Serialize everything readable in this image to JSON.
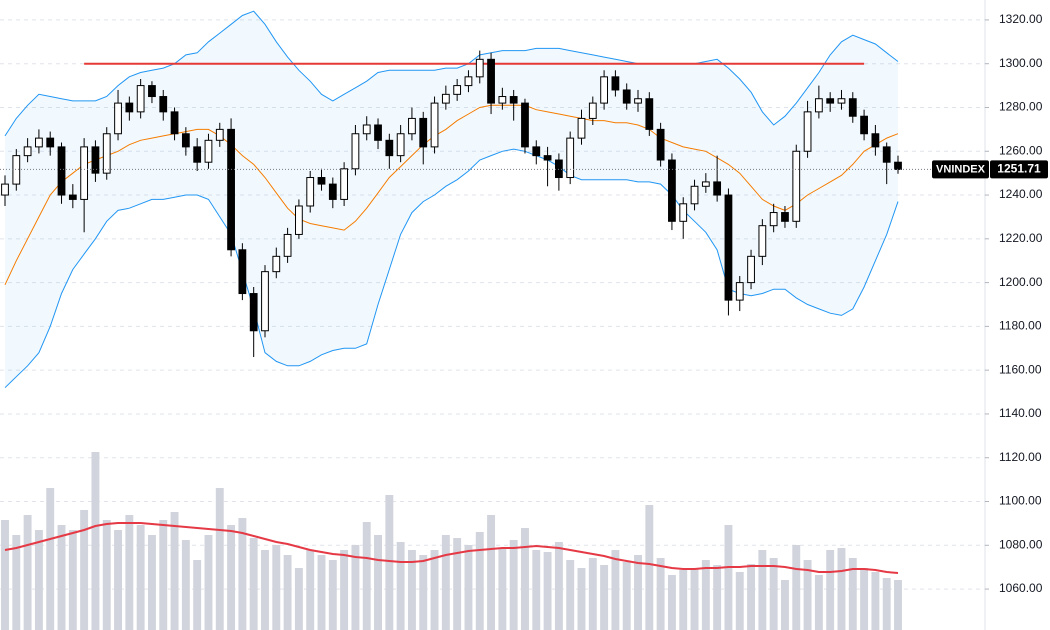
{
  "chart_data": {
    "type": "candlestick",
    "symbol": "VNINDEX",
    "last_price": 1251.71,
    "ylim": [
      1041.3,
      1329.1
    ],
    "yticks": [
      {
        "value": 1060,
        "label": "1060.00"
      },
      {
        "value": 1080,
        "label": "1080.00"
      },
      {
        "value": 1100,
        "label": "1100.00"
      },
      {
        "value": 1120,
        "label": "1120.00"
      },
      {
        "value": 1140,
        "label": "1140.00"
      },
      {
        "value": 1160,
        "label": "1160.00"
      },
      {
        "value": 1180,
        "label": "1180.00"
      },
      {
        "value": 1200,
        "label": "1200.00"
      },
      {
        "value": 1220,
        "label": "1220.00"
      },
      {
        "value": 1240,
        "label": "1240.00"
      },
      {
        "value": 1260,
        "label": "1260.00"
      },
      {
        "value": 1280,
        "label": "1280.00"
      },
      {
        "value": 1300,
        "label": "1300.00"
      },
      {
        "value": 1320,
        "label": "1320.00"
      }
    ],
    "grid": true,
    "open": [
      1240,
      1245,
      1258,
      1262,
      1266,
      1262,
      1240,
      1238,
      1262,
      1250,
      1268,
      1282,
      1278,
      1290,
      1285,
      1278,
      1268,
      1262,
      1255,
      1265,
      1270,
      1215,
      1195,
      1178,
      1205,
      1212,
      1222,
      1235,
      1248,
      1245,
      1238,
      1252,
      1268,
      1272,
      1265,
      1258,
      1268,
      1275,
      1262,
      1282,
      1286,
      1290,
      1294,
      1302,
      1282,
      1285,
      1282,
      1262,
      1258,
      1256,
      1248,
      1266,
      1275,
      1282,
      1294,
      1288,
      1282,
      1284,
      1270,
      1256,
      1228,
      1236,
      1244,
      1246,
      1240,
      1192,
      1200,
      1212,
      1226,
      1232,
      1228,
      1260,
      1278,
      1284,
      1282,
      1284,
      1276,
      1268,
      1262,
      1255
    ],
    "high": [
      1249,
      1261,
      1266,
      1270,
      1269,
      1264,
      1245,
      1266,
      1265,
      1271,
      1288,
      1285,
      1293,
      1292,
      1288,
      1280,
      1271,
      1266,
      1268,
      1273,
      1275,
      1218,
      1198,
      1208,
      1216,
      1225,
      1238,
      1251,
      1252,
      1248,
      1255,
      1272,
      1276,
      1275,
      1268,
      1272,
      1280,
      1278,
      1285,
      1290,
      1293,
      1297,
      1306,
      1305,
      1289,
      1288,
      1284,
      1265,
      1262,
      1259,
      1269,
      1279,
      1285,
      1297,
      1297,
      1291,
      1288,
      1287,
      1273,
      1259,
      1239,
      1247,
      1250,
      1258,
      1243,
      1203,
      1215,
      1229,
      1236,
      1235,
      1263,
      1283,
      1290,
      1287,
      1288,
      1287,
      1279,
      1272,
      1264,
      1258
    ],
    "low": [
      1235,
      1242,
      1255,
      1259,
      1258,
      1236,
      1234,
      1223,
      1246,
      1247,
      1265,
      1274,
      1275,
      1282,
      1274,
      1265,
      1258,
      1251,
      1252,
      1262,
      1212,
      1192,
      1166,
      1175,
      1202,
      1209,
      1220,
      1232,
      1242,
      1234,
      1235,
      1249,
      1265,
      1261,
      1252,
      1255,
      1265,
      1254,
      1259,
      1279,
      1283,
      1287,
      1291,
      1277,
      1279,
      1274,
      1259,
      1254,
      1244,
      1242,
      1245,
      1263,
      1272,
      1279,
      1285,
      1279,
      1278,
      1267,
      1253,
      1224,
      1220,
      1233,
      1241,
      1237,
      1185,
      1187,
      1197,
      1208,
      1223,
      1225,
      1225,
      1257,
      1275,
      1278,
      1279,
      1273,
      1265,
      1258,
      1245,
      1249.7
    ],
    "close": [
      1245,
      1258,
      1262,
      1266,
      1262,
      1240,
      1238,
      1262,
      1250,
      1268,
      1282,
      1278,
      1290,
      1285,
      1278,
      1268,
      1262,
      1255,
      1265,
      1270,
      1215,
      1195,
      1178,
      1205,
      1212,
      1222,
      1235,
      1248,
      1245,
      1238,
      1252,
      1268,
      1272,
      1265,
      1258,
      1268,
      1275,
      1262,
      1282,
      1286,
      1290,
      1294,
      1302,
      1282,
      1285,
      1282,
      1262,
      1258,
      1256,
      1248,
      1266,
      1275,
      1282,
      1294,
      1288,
      1282,
      1284,
      1270,
      1256,
      1228,
      1236,
      1244,
      1246,
      1240,
      1192,
      1200,
      1212,
      1226,
      1232,
      1228,
      1260,
      1278,
      1284,
      1282,
      1284,
      1276,
      1268,
      1262,
      1255,
      1251.71
    ],
    "bb_upper": [
      1267,
      1275,
      1281,
      1286,
      1285,
      1284,
      1283,
      1283,
      1283,
      1285,
      1290,
      1294,
      1296,
      1297,
      1298,
      1300,
      1304,
      1305,
      1310,
      1314,
      1318,
      1322,
      1324,
      1318,
      1310,
      1303,
      1297,
      1292,
      1286,
      1283,
      1286,
      1289,
      1292,
      1296,
      1297,
      1297,
      1297,
      1297,
      1297,
      1298,
      1298,
      1300,
      1304,
      1305,
      1306,
      1306,
      1306,
      1307,
      1307,
      1307,
      1306,
      1305,
      1304,
      1303,
      1302,
      1301,
      1300,
      1300,
      1300,
      1300,
      1300,
      1300,
      1301,
      1302,
      1298,
      1293,
      1287,
      1278,
      1272,
      1276,
      1282,
      1289,
      1296,
      1304,
      1310,
      1313,
      1311,
      1309,
      1305,
      1301
    ],
    "bb_middle": [
      1199,
      1210,
      1220,
      1230,
      1240,
      1246,
      1250,
      1254,
      1256,
      1258,
      1260,
      1263,
      1265,
      1266,
      1267,
      1268,
      1269,
      1270,
      1270,
      1267,
      1263,
      1258,
      1254,
      1248,
      1241,
      1234,
      1229,
      1227,
      1226,
      1225,
      1224,
      1228,
      1234,
      1241,
      1248,
      1253,
      1258,
      1263,
      1267,
      1270,
      1274,
      1277,
      1280,
      1281,
      1281,
      1281,
      1281,
      1279,
      1278,
      1277,
      1276,
      1275,
      1274,
      1274,
      1273,
      1273,
      1272,
      1270,
      1266,
      1264,
      1262,
      1261,
      1260,
      1257,
      1254,
      1250,
      1244,
      1238,
      1235,
      1233,
      1236,
      1240,
      1243,
      1246,
      1249,
      1254,
      1260,
      1263,
      1266,
      1268
    ],
    "bb_lower": [
      1152,
      1157,
      1162,
      1168,
      1180,
      1195,
      1206,
      1213,
      1220,
      1228,
      1233,
      1234,
      1236,
      1238,
      1238,
      1239,
      1240,
      1240,
      1238,
      1230,
      1222,
      1205,
      1188,
      1168,
      1164,
      1162,
      1162,
      1164,
      1167,
      1169,
      1170,
      1170,
      1172,
      1190,
      1206,
      1222,
      1232,
      1237,
      1240,
      1244,
      1247,
      1251,
      1256,
      1258,
      1260,
      1261,
      1260,
      1258,
      1256,
      1253,
      1249,
      1247,
      1247,
      1247,
      1247,
      1247,
      1246,
      1246,
      1245,
      1240,
      1233,
      1228,
      1223,
      1215,
      1197,
      1195,
      1194,
      1195,
      1197,
      1197,
      1193,
      1190,
      1188,
      1186,
      1185,
      1188,
      1198,
      1210,
      1222,
      1237
    ],
    "volume": [
      110,
      95,
      115,
      100,
      142,
      105,
      100,
      120,
      178,
      110,
      100,
      115,
      105,
      95,
      110,
      118,
      90,
      70,
      95,
      142,
      105,
      112,
      92,
      80,
      85,
      75,
      62,
      80,
      75,
      70,
      80,
      85,
      108,
      95,
      135,
      88,
      80,
      75,
      80,
      95,
      92,
      85,
      98,
      115,
      82,
      90,
      102,
      80,
      78,
      88,
      70,
      62,
      72,
      65,
      80,
      68,
      75,
      125,
      72,
      55,
      60,
      62,
      70,
      65,
      105,
      58,
      66,
      80,
      72,
      50,
      85,
      70,
      55,
      80,
      82,
      72,
      62,
      58,
      52,
      50
    ],
    "volume_ma": [
      80,
      82,
      85,
      88,
      91,
      94,
      97,
      100,
      104,
      106,
      107,
      107,
      107,
      106,
      105,
      104,
      103,
      102,
      101,
      100,
      99,
      97,
      94,
      91,
      88,
      86,
      83,
      80,
      78,
      76,
      75,
      73,
      72,
      70,
      69,
      68,
      68,
      69,
      72,
      75,
      77,
      79,
      80,
      81,
      82,
      82,
      83,
      84,
      83,
      82,
      80,
      78,
      76,
      74,
      71,
      69,
      67,
      66,
      64,
      62,
      61,
      61,
      62,
      62,
      63,
      63,
      64,
      64,
      64,
      63,
      61,
      60,
      58,
      58,
      59,
      61,
      61,
      60,
      58,
      57
    ],
    "volume_ylim": [
      0,
      350
    ],
    "hline": {
      "value": 1300,
      "from": 7,
      "to": 76,
      "color": "#e53935"
    },
    "colors": {
      "band": "#2196f3",
      "middle": "#f57c00",
      "volume": "#d1d4dc",
      "volume_ma": "#e53945",
      "candle": "#000000"
    }
  }
}
